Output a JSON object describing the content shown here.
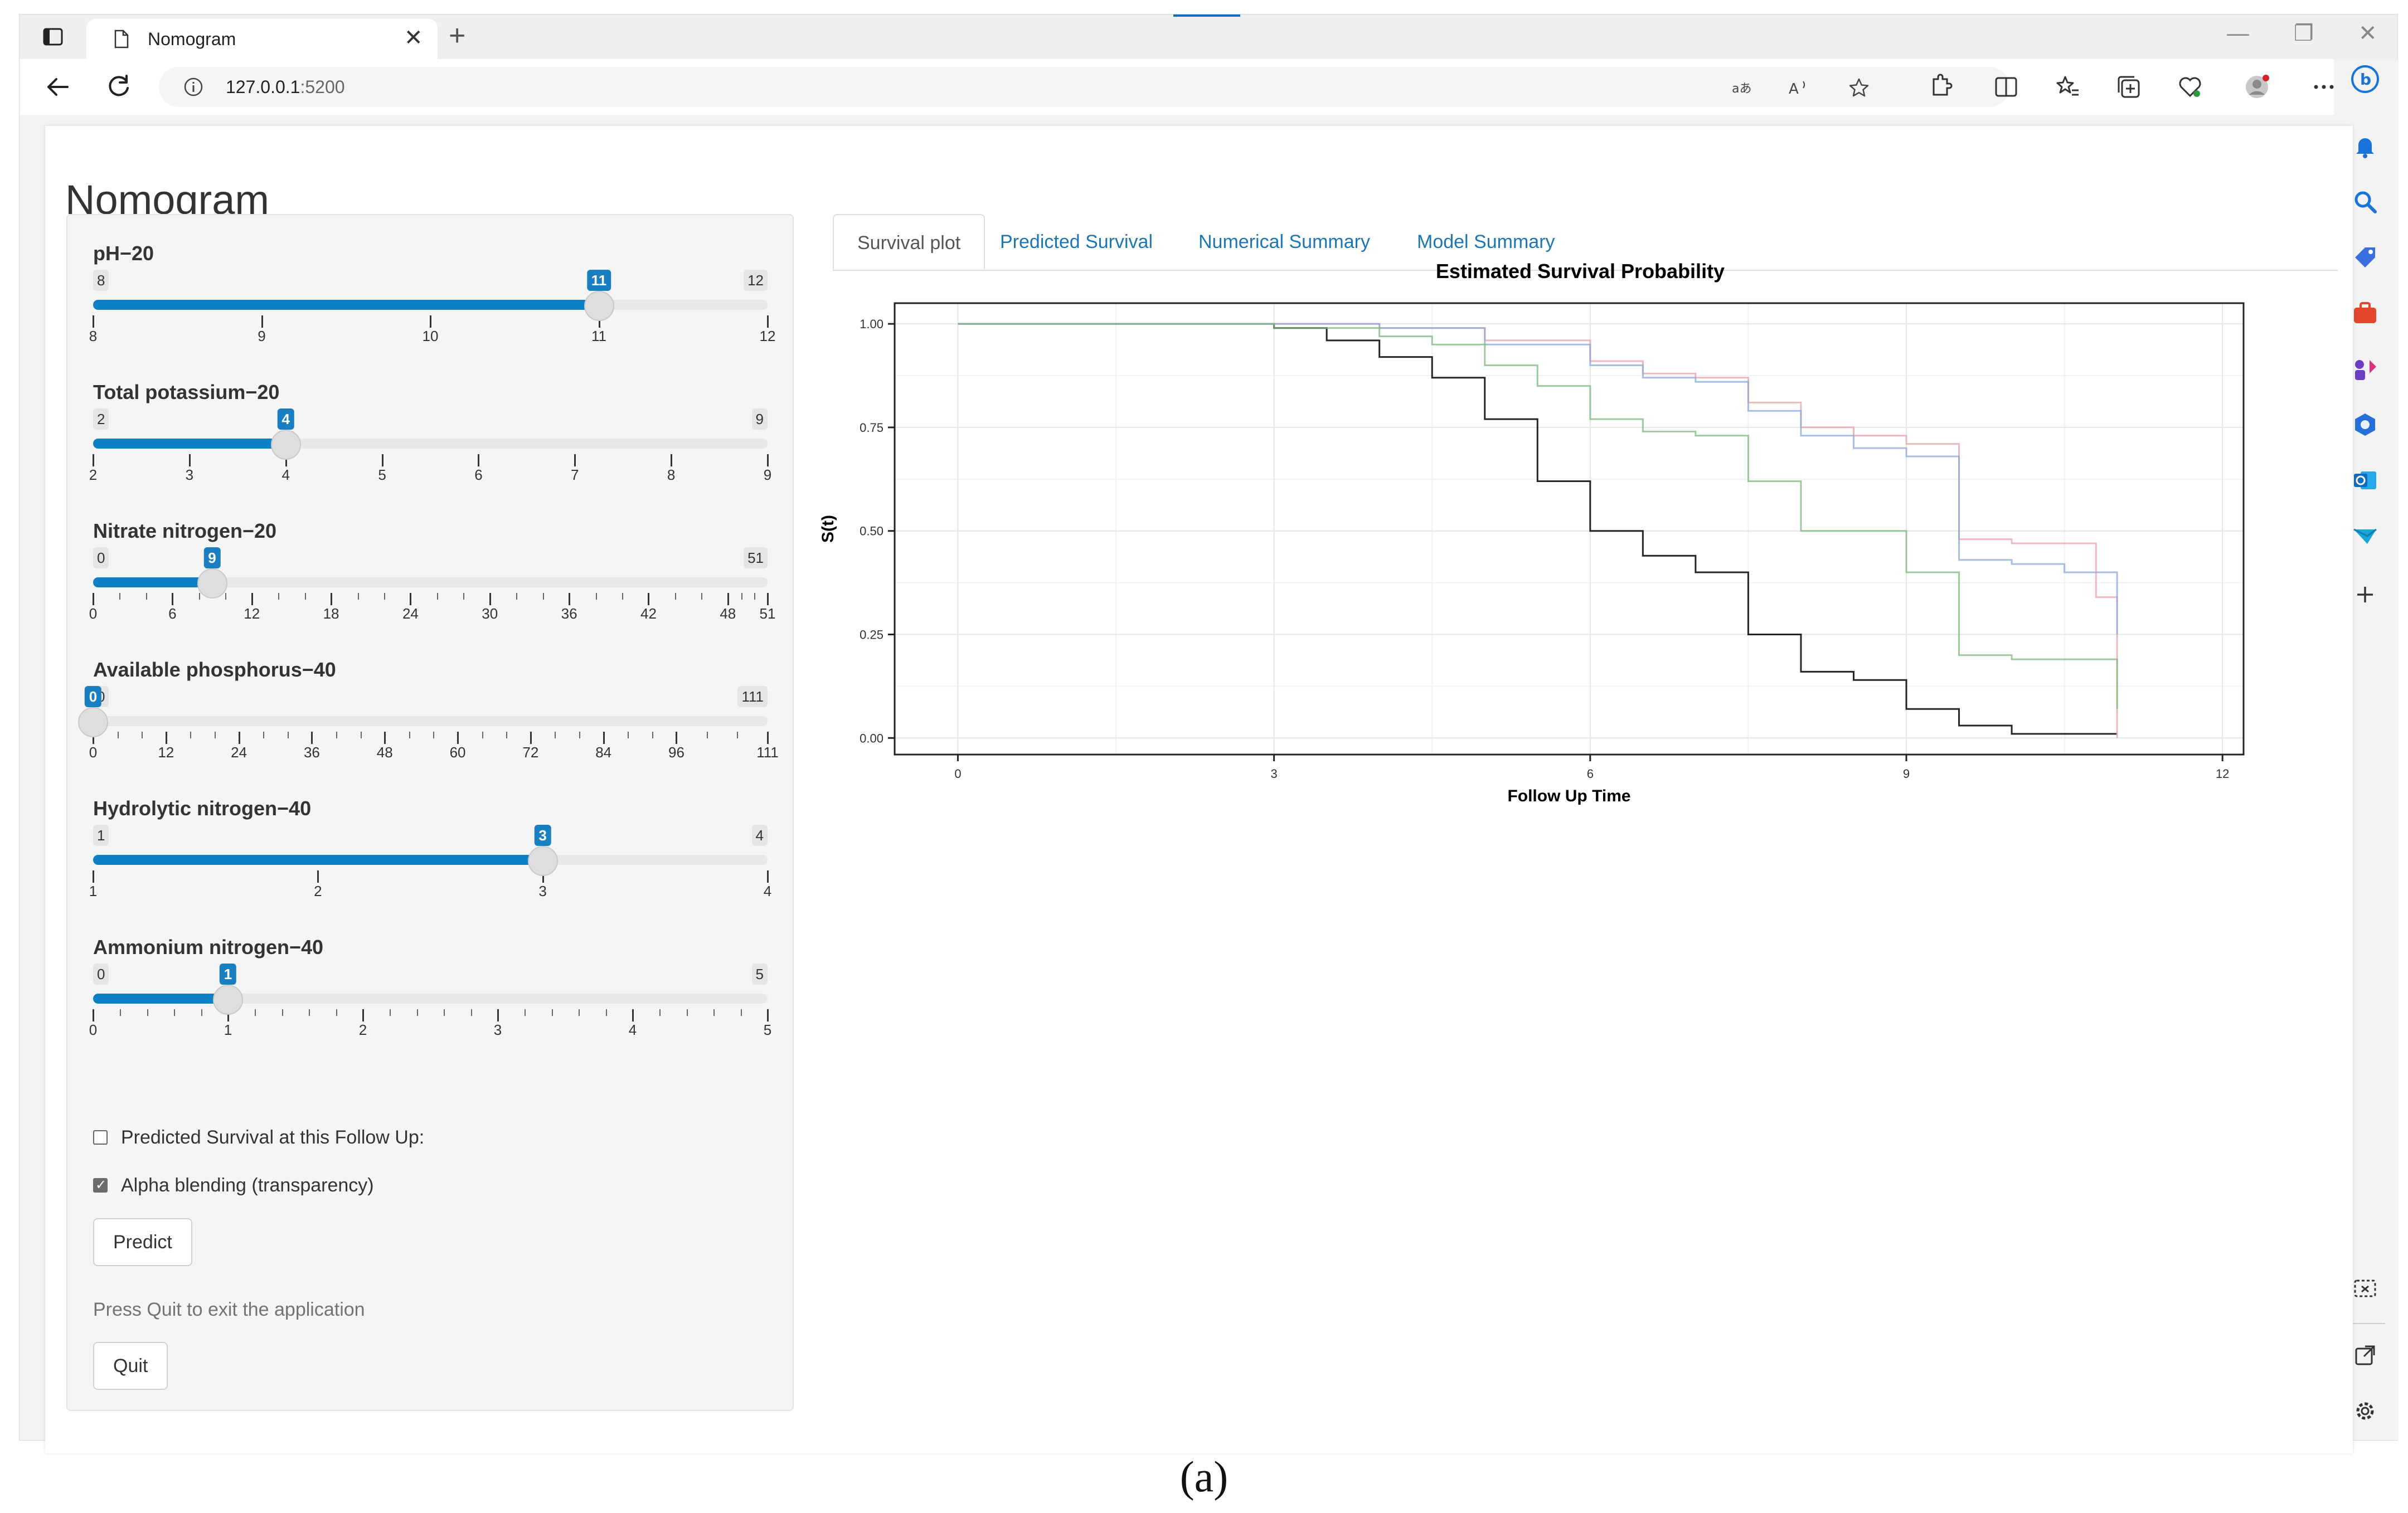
{
  "browser": {
    "tab_title": "Nomogram",
    "new_tab_symbol": "+",
    "close_symbol": "✕",
    "url_host": "127.0.0.1",
    "url_port": ":5200",
    "window_controls": [
      "—",
      "❐",
      "✕"
    ]
  },
  "page": {
    "title": "Nomogram"
  },
  "sliders": [
    {
      "label": "pH−20",
      "min": 8,
      "max": 12,
      "value": 11,
      "ticks": [
        "8",
        "9",
        "10",
        "11",
        "12"
      ],
      "minor_per_major": 0
    },
    {
      "label": "Total  potassium−20",
      "min": 2,
      "max": 9,
      "value": 4,
      "ticks": [
        "2",
        "3",
        "4",
        "5",
        "6",
        "7",
        "8",
        "9"
      ],
      "minor_per_major": 0
    },
    {
      "label": "Nitrate  nitrogen−20",
      "min": 0,
      "max": 51,
      "value": 9,
      "ticks": [
        "0",
        "6",
        "12",
        "18",
        "24",
        "30",
        "36",
        "42",
        "48",
        "51"
      ],
      "tick_values": [
        0,
        6,
        12,
        18,
        24,
        30,
        36,
        42,
        48,
        51
      ],
      "minor_per_major": 2
    },
    {
      "label": "Available  phosphorus−40",
      "min": 0,
      "max": 111,
      "value": 0,
      "ticks": [
        "0",
        "12",
        "24",
        "36",
        "48",
        "60",
        "72",
        "84",
        "96",
        "111"
      ],
      "tick_values": [
        0,
        12,
        24,
        36,
        48,
        60,
        72,
        84,
        96,
        111
      ],
      "minor_per_major": 2
    },
    {
      "label": "Hydrolytic  nitrogen−40",
      "min": 1,
      "max": 4,
      "value": 3,
      "ticks": [
        "1",
        "2",
        "3",
        "4"
      ],
      "minor_per_major": 0
    },
    {
      "label": "Ammonium  nitrogen−40",
      "min": 0,
      "max": 5,
      "value": 1,
      "ticks": [
        "0",
        "1",
        "2",
        "3",
        "4",
        "5"
      ],
      "minor_per_major": 4
    }
  ],
  "controls": {
    "predicted_followup_label": "Predicted Survival at this Follow Up:",
    "predicted_followup_checked": false,
    "alpha_label": "Alpha blending (transparency)",
    "alpha_checked": true,
    "predict_button": "Predict",
    "quit_help": "Press Quit to exit the application",
    "quit_button": "Quit"
  },
  "tabs": [
    "Survival plot",
    "Predicted Survival",
    "Numerical Summary",
    "Model Summary"
  ],
  "active_tab": "Survival plot",
  "caption": "(a)",
  "chart_data": {
    "type": "line",
    "title": "Estimated Survival Probability",
    "xlabel": "Follow Up Time",
    "ylabel": "S(t)",
    "xlim": [
      -0.6,
      12.2
    ],
    "ylim": [
      -0.04,
      1.05
    ],
    "xticks": [
      0,
      3,
      6,
      9,
      12
    ],
    "xtick_labels": [
      "0",
      "3",
      "6",
      "9",
      "12"
    ],
    "yticks": [
      0,
      0.25,
      0.5,
      0.75,
      1.0
    ],
    "ytick_labels": [
      "0.00",
      "0.25",
      "0.50",
      "0.75",
      "1.00"
    ],
    "grid": true,
    "series": [
      {
        "color": "#000000",
        "x": [
          0,
          2.3,
          3.0,
          3.5,
          4.0,
          4.5,
          5.0,
          5.5,
          6.0,
          6.5,
          7.0,
          7.5,
          8.0,
          8.5,
          9.0,
          9.5,
          10.0,
          11.0
        ],
        "y": [
          1.0,
          1.0,
          0.99,
          0.96,
          0.92,
          0.87,
          0.77,
          0.62,
          0.5,
          0.44,
          0.4,
          0.25,
          0.16,
          0.14,
          0.07,
          0.03,
          0.01,
          0.01
        ]
      },
      {
        "color": "#e8a0a8",
        "x": [
          0,
          2.3,
          3.0,
          4.0,
          5.0,
          6.0,
          6.5,
          7.0,
          7.5,
          8.0,
          8.5,
          9.0,
          9.5,
          10.0,
          10.8,
          11.0
        ],
        "y": [
          1.0,
          1.0,
          1.0,
          0.99,
          0.96,
          0.91,
          0.88,
          0.87,
          0.81,
          0.75,
          0.73,
          0.71,
          0.48,
          0.47,
          0.34,
          0.0
        ]
      },
      {
        "color": "#8aa8d8",
        "x": [
          0,
          2.3,
          3.0,
          4.0,
          5.0,
          6.0,
          6.5,
          7.0,
          7.5,
          8.0,
          8.5,
          9.0,
          9.5,
          10.0,
          10.5,
          11.0
        ],
        "y": [
          1.0,
          1.0,
          1.0,
          0.99,
          0.95,
          0.9,
          0.87,
          0.86,
          0.79,
          0.73,
          0.7,
          0.68,
          0.43,
          0.42,
          0.4,
          0.25
        ]
      },
      {
        "color": "#7cb87c",
        "x": [
          0,
          2.3,
          3.0,
          4.0,
          4.5,
          5.0,
          5.5,
          6.0,
          6.5,
          7.0,
          7.5,
          8.0,
          8.5,
          9.0,
          9.5,
          10.0,
          11.0
        ],
        "y": [
          1.0,
          1.0,
          0.99,
          0.97,
          0.95,
          0.9,
          0.85,
          0.77,
          0.74,
          0.73,
          0.62,
          0.5,
          0.5,
          0.4,
          0.2,
          0.19,
          0.07
        ]
      }
    ]
  }
}
